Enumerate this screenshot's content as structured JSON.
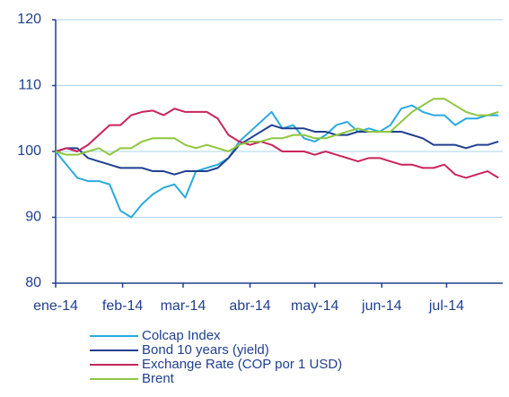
{
  "chart_data": {
    "type": "line",
    "x": [
      0,
      5,
      10,
      15,
      20,
      25,
      30,
      35,
      40,
      45,
      50,
      55,
      60,
      65,
      70,
      75,
      80,
      85,
      90,
      95,
      100,
      105,
      110,
      115,
      120,
      125,
      130,
      135,
      140,
      145,
      150,
      155,
      160,
      165,
      170,
      175,
      180,
      185,
      190,
      195,
      200,
      205
    ],
    "xlim": [
      0,
      207
    ],
    "xticks": [
      {
        "value": 0,
        "label": "ene-14"
      },
      {
        "value": 31,
        "label": "feb-14"
      },
      {
        "value": 59,
        "label": "mar-14"
      },
      {
        "value": 90,
        "label": "abr-14"
      },
      {
        "value": 120,
        "label": "may-14"
      },
      {
        "value": 151,
        "label": "jun-14"
      },
      {
        "value": 181,
        "label": "jul-14"
      }
    ],
    "ylim": [
      80,
      120
    ],
    "yticks": [
      80,
      90,
      100,
      110,
      120
    ],
    "grid": true,
    "series": [
      {
        "name": "Colcap Index",
        "color": "#29a9e0",
        "values": [
          100,
          98,
          96,
          95.5,
          95.5,
          95,
          91,
          90,
          92,
          93.5,
          94.5,
          95,
          93,
          97,
          97.5,
          98,
          99,
          101.5,
          103,
          104.5,
          106,
          103.5,
          104,
          102,
          101.5,
          102.5,
          104,
          104.5,
          103,
          103.5,
          103,
          104,
          106.5,
          107,
          106,
          105.5,
          105.5,
          104,
          105,
          105,
          105.5,
          105.5
        ]
      },
      {
        "name": "Bond 10 years (yield)",
        "color": "#1f3f8f",
        "values": [
          100,
          100.5,
          100.5,
          99,
          98.5,
          98,
          97.5,
          97.5,
          97.5,
          97,
          97,
          96.5,
          97,
          97,
          97,
          97.5,
          99,
          101,
          102,
          103,
          104,
          103.5,
          103.5,
          103.5,
          103,
          103,
          102.5,
          102.5,
          103,
          103,
          103,
          103,
          103,
          102.5,
          102,
          101,
          101,
          101,
          100.5,
          101,
          101,
          101.5
        ]
      },
      {
        "name": "Exchange Rate (COP por 1 USD)",
        "color": "#c8245a",
        "values": [
          100,
          100.5,
          100,
          101,
          102.5,
          104,
          104,
          105.5,
          106,
          106.2,
          105.5,
          106.5,
          106,
          106,
          106,
          105,
          102.5,
          101.5,
          101,
          101.5,
          101,
          100,
          100,
          100,
          99.5,
          100,
          99.5,
          99,
          98.5,
          99,
          99,
          98.5,
          98,
          98,
          97.5,
          97.5,
          98,
          96.5,
          96,
          96.5,
          97,
          96
        ]
      },
      {
        "name": "Brent",
        "color": "#8dc63f",
        "values": [
          100,
          99.5,
          99.5,
          100,
          100.5,
          99.5,
          100.5,
          100.5,
          101.5,
          102,
          102,
          102,
          101,
          100.5,
          101,
          100.5,
          100,
          101,
          101.5,
          101.5,
          102,
          102,
          102.5,
          102.5,
          102,
          102,
          102.5,
          103,
          103.5,
          103,
          103,
          103,
          104.5,
          106,
          107,
          108,
          108,
          107,
          106,
          105.5,
          105.5,
          106
        ]
      }
    ]
  }
}
